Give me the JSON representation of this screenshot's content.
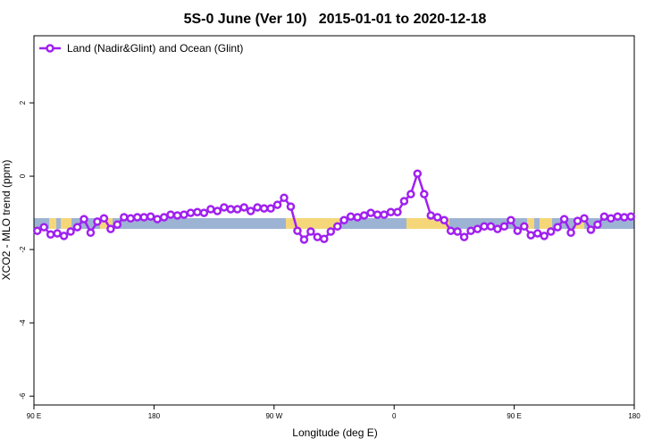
{
  "chart_data": {
    "type": "line",
    "title": "5S-0 June (Ver 10)   2015-01-01 to 2020-12-18",
    "x_label": "Longitude (deg E)",
    "y_label": "XCO2 - MLO trend (ppm)",
    "xlim": [
      90,
      540
    ],
    "ylim": [
      -6.24,
      3.83
    ],
    "xticks": [
      {
        "value": 90,
        "label": "90 E"
      },
      180,
      {
        "value": 270,
        "label": "90 W"
      },
      {
        "value": 360,
        "label": "0"
      },
      {
        "value": 450,
        "label": "90 E"
      },
      {
        "value": 540,
        "label": "180"
      }
    ],
    "yticks": [
      -6,
      -4,
      -2,
      0,
      2
    ],
    "legend": "top-left",
    "x": [
      92.5,
      97.5,
      102.5,
      107.5,
      112.5,
      117.5,
      122.5,
      127.5,
      132.5,
      137.5,
      142.5,
      147.5,
      152.5,
      157.5,
      162.5,
      167.5,
      172.5,
      177.5,
      182.5,
      187.5,
      192.5,
      197.5,
      202.5,
      207.5,
      212.5,
      217.5,
      222.5,
      227.5,
      232.5,
      237.5,
      242.5,
      247.5,
      252.5,
      257.5,
      262.5,
      267.5,
      272.5,
      277.5,
      282.5,
      287.5,
      292.5,
      297.5,
      302.5,
      307.5,
      312.5,
      317.5,
      322.5,
      327.5,
      332.5,
      337.5,
      342.5,
      347.5,
      352.5,
      357.5,
      362.5,
      367.5,
      372.5,
      377.5,
      382.5,
      387.5,
      392.5,
      397.5,
      402.5,
      407.5,
      412.5,
      417.5,
      422.5,
      427.5,
      432.5,
      437.5,
      442.5,
      447.5,
      452.5,
      457.5,
      462.5,
      467.5,
      472.5,
      477.5,
      482.5,
      487.5,
      492.5,
      497.5,
      502.5,
      507.5,
      512.5,
      517.5,
      522.5,
      527.5,
      532.5,
      537.5
    ],
    "series": [
      {
        "name": "Land (Nadir&Glint) and Ocean (Glint)",
        "color": "#a020f0",
        "values": [
          -1.49,
          -1.39,
          -1.59,
          -1.56,
          -1.63,
          -1.51,
          -1.39,
          -1.17,
          -1.54,
          -1.24,
          -1.15,
          -1.44,
          -1.32,
          -1.12,
          -1.15,
          -1.12,
          -1.12,
          -1.1,
          -1.17,
          -1.12,
          -1.05,
          -1.07,
          -1.05,
          -1.0,
          -0.98,
          -1.0,
          -0.9,
          -0.95,
          -0.85,
          -0.9,
          -0.9,
          -0.85,
          -0.95,
          -0.85,
          -0.88,
          -0.88,
          -0.78,
          -0.59,
          -0.83,
          -1.49,
          -1.73,
          -1.51,
          -1.66,
          -1.71,
          -1.51,
          -1.37,
          -1.2,
          -1.1,
          -1.12,
          -1.07,
          -1.0,
          -1.05,
          -1.05,
          -0.98,
          -0.98,
          -0.68,
          -0.49,
          0.07,
          -0.49,
          -1.07,
          -1.12,
          -1.2,
          -1.49,
          -1.51,
          -1.66,
          -1.49,
          -1.44,
          -1.37,
          -1.37,
          -1.44,
          -1.37,
          -1.2,
          -1.49,
          -1.37,
          -1.61,
          -1.56,
          -1.63,
          -1.51,
          -1.39,
          -1.17,
          -1.54,
          -1.22,
          -1.15,
          -1.46,
          -1.32,
          -1.1,
          -1.15,
          -1.1,
          -1.12,
          -1.1
        ]
      }
    ]
  }
}
